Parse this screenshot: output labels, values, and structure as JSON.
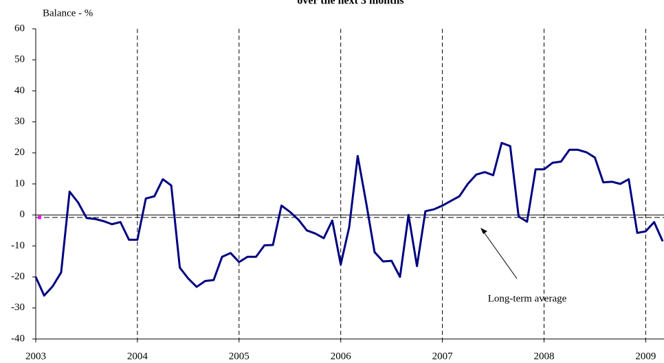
{
  "chart_data": {
    "type": "line",
    "title": "over the next 3 months",
    "y_label": "Balance - %",
    "annotation": "Long-term average",
    "average": -0.8,
    "x": [
      2003,
      2003.083,
      2003.167,
      2003.25,
      2003.333,
      2003.417,
      2003.5,
      2003.583,
      2003.667,
      2003.75,
      2003.833,
      2003.917,
      2004,
      2004.083,
      2004.167,
      2004.25,
      2004.333,
      2004.417,
      2004.5,
      2004.583,
      2004.667,
      2004.75,
      2004.833,
      2004.917,
      2005,
      2005.083,
      2005.167,
      2005.25,
      2005.333,
      2005.417,
      2005.5,
      2005.583,
      2005.667,
      2005.75,
      2005.833,
      2005.917,
      2006,
      2006.083,
      2006.167,
      2006.25,
      2006.333,
      2006.417,
      2006.5,
      2006.583,
      2006.667,
      2006.75,
      2006.833,
      2006.917,
      2007,
      2007.083,
      2007.167,
      2007.25,
      2007.333,
      2007.417,
      2007.5,
      2007.583,
      2007.667,
      2007.75,
      2007.833,
      2007.917,
      2008,
      2008.083,
      2008.167,
      2008.25,
      2008.333,
      2008.417,
      2008.5,
      2008.583,
      2008.667,
      2008.75,
      2008.833,
      2008.917,
      2009,
      2009.083,
      2009.167
    ],
    "series": [
      {
        "color": "#000080",
        "values": [
          -20,
          -26,
          -23,
          -18.5,
          7.5,
          4,
          -1,
          -1.3,
          -2,
          -3,
          -2.3,
          -8,
          -8,
          5.3,
          6,
          11.5,
          9.5,
          -17,
          -20.5,
          -23.2,
          -21.3,
          -21,
          -13.5,
          -12.3,
          -15.2,
          -13.5,
          -13.5,
          -9.8,
          -9.7,
          3,
          1,
          -1.5,
          -5,
          -6,
          -7.5,
          -1.8,
          -16,
          -4,
          19,
          4,
          -12,
          -15,
          -14.8,
          -20,
          0,
          -16.5,
          1.2,
          1.8,
          3,
          4.5,
          6,
          10,
          13,
          13.8,
          12.8,
          23.2,
          22.2,
          -0.5,
          -2.2,
          14.7,
          14.7,
          16.8,
          17.2,
          21,
          21,
          20.2,
          18.5,
          10.5,
          10.7,
          10,
          11.5,
          -5.8,
          -5.3,
          -2.3,
          -8.5
        ]
      }
    ],
    "xlim": [
      2003,
      2009.18
    ],
    "xticks": [
      2003,
      2004,
      2005,
      2006,
      2007,
      2008,
      2009
    ],
    "ylim": [
      -40,
      60
    ],
    "yticks": [
      -40,
      -30,
      -20,
      -10,
      0,
      10,
      20,
      30,
      40,
      50,
      60
    ],
    "xgrid": true
  }
}
